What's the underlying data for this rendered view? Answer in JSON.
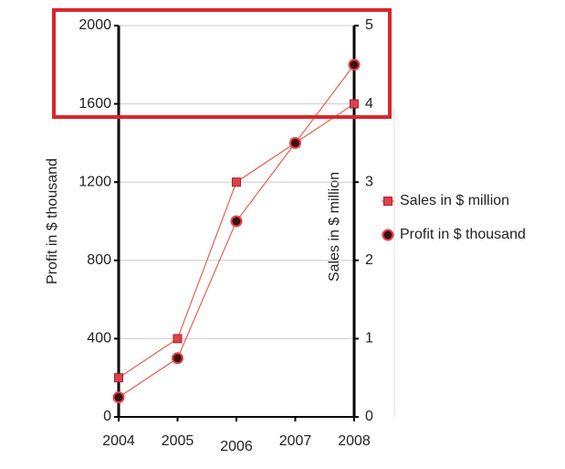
{
  "chart_data": {
    "type": "line",
    "categories": [
      "2004",
      "2005",
      "2006",
      "2007",
      "2008"
    ],
    "y_label": "Profit in $ thousand",
    "y2_label": "Sales in $ million",
    "ylim": [
      0,
      2000
    ],
    "yticks": [
      0,
      400,
      800,
      1200,
      1600,
      2000
    ],
    "y2lim": [
      0,
      5
    ],
    "y2ticks": [
      0,
      1,
      2,
      3,
      4,
      5
    ],
    "grid": true,
    "legend": "right",
    "series": [
      {
        "name": "Sales in $ million",
        "color": "#e8604c",
        "marker": "square",
        "axis": "y2",
        "values": [
          0.5,
          1,
          3,
          3.5,
          4
        ]
      },
      {
        "name": "Profit in $ thousand",
        "color": "#e8604c",
        "marker": "circle",
        "values": [
          100,
          300,
          1000,
          1400,
          1800
        ]
      }
    ]
  }
}
